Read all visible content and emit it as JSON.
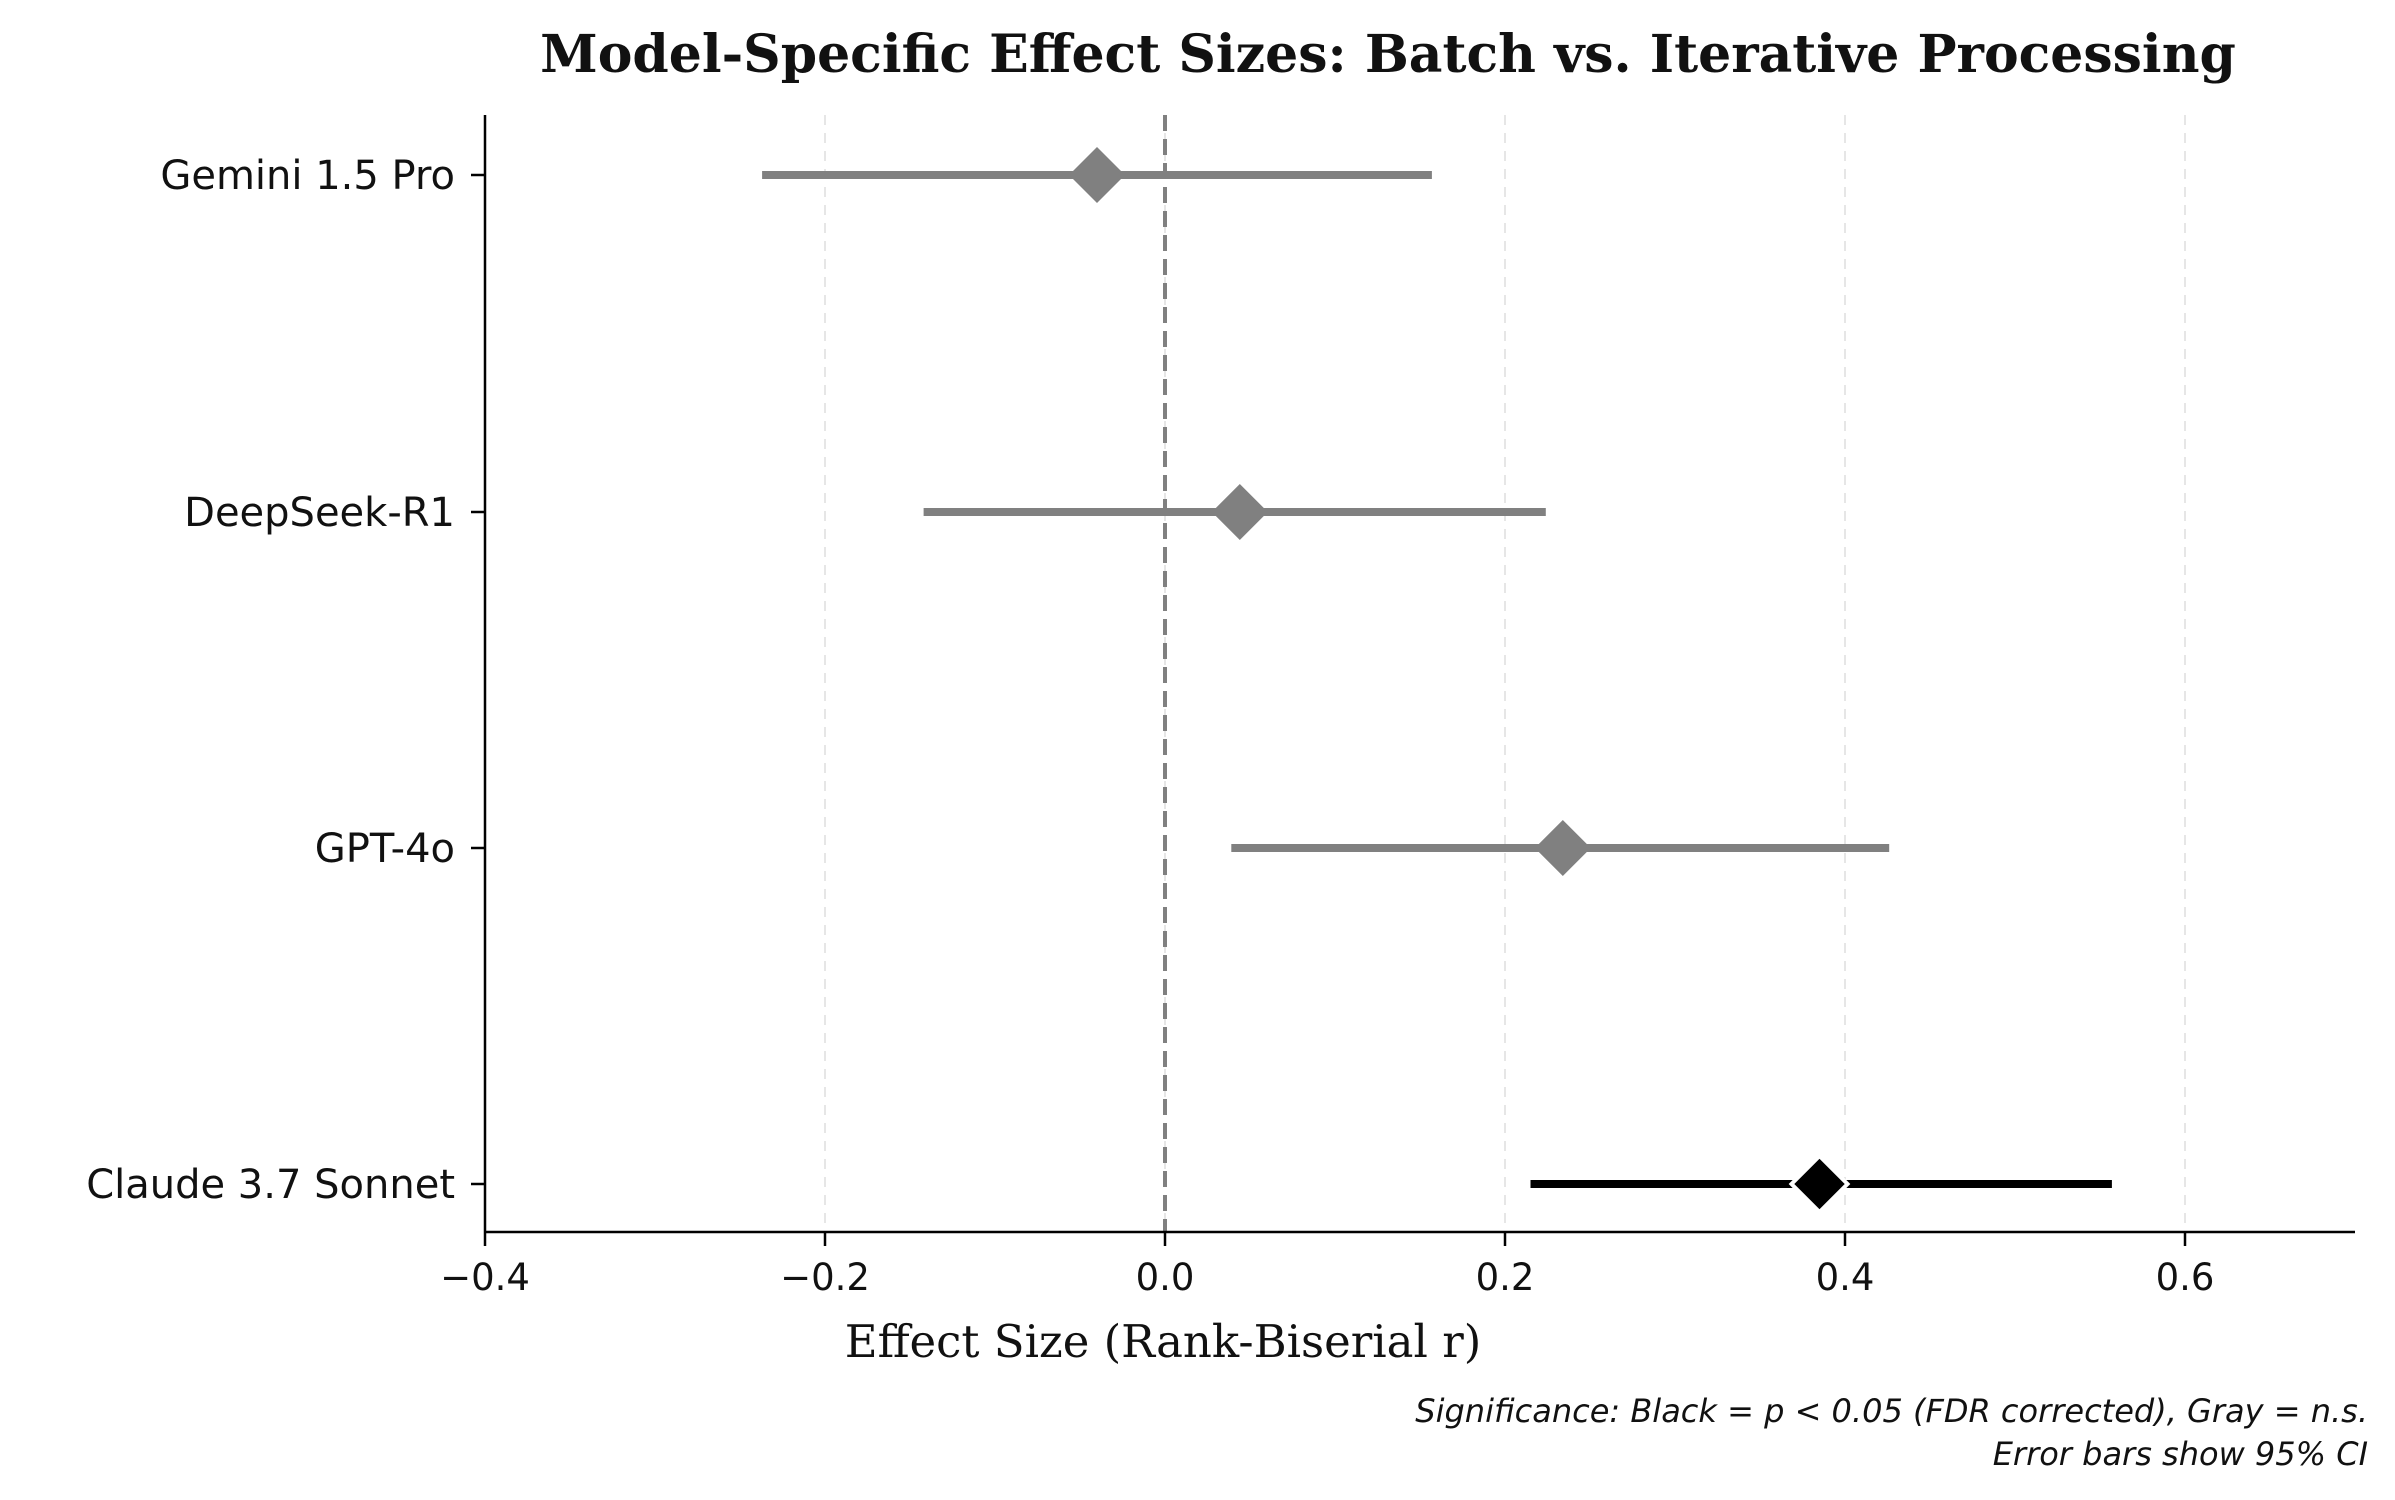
{
  "chart_data": {
    "type": "forest",
    "title": "Model-Specific Effect Sizes: Batch vs. Iterative Processing",
    "xlabel": "Effect Size (Rank-Biserial r)",
    "ylabel": "",
    "xlim": [
      -0.4,
      0.7
    ],
    "xticks": [
      -0.4,
      -0.2,
      0.0,
      0.2,
      0.4,
      0.6
    ],
    "xtick_labels": [
      "−0.4",
      "−0.2",
      "0.0",
      "0.2",
      "0.4",
      "0.6"
    ],
    "reference_line": 0.0,
    "grid": "vertical dashed",
    "marker": "diamond",
    "models": [
      {
        "name": "Gemini 1.5 Pro",
        "effect": -0.04,
        "ci_low": -0.237,
        "ci_high": 0.157,
        "significant": false
      },
      {
        "name": "DeepSeek-R1",
        "effect": 0.044,
        "ci_low": -0.142,
        "ci_high": 0.224,
        "significant": false
      },
      {
        "name": "GPT-4o",
        "effect": 0.234,
        "ci_low": 0.039,
        "ci_high": 0.426,
        "significant": false
      },
      {
        "name": "Claude 3.7 Sonnet",
        "effect": 0.385,
        "ci_low": 0.215,
        "ci_high": 0.557,
        "significant": true
      }
    ],
    "colors": {
      "significant": "#000000",
      "not_significant": "#808080",
      "reference": "#808080",
      "grid": "#e6e6e6"
    },
    "annotations": [
      "Significance: Black = p < 0.05 (FDR corrected), Gray = n.s.",
      "Error bars show 95% CI"
    ]
  }
}
